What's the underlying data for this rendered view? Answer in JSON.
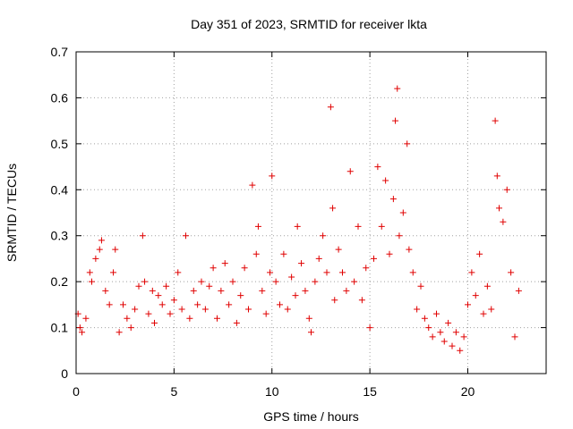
{
  "chart_data": {
    "type": "scatter",
    "title": "Day 351 of 2023, SRMTID for receiver lkta",
    "xlabel": "GPS time / hours",
    "ylabel": "SRMTID / TECUs",
    "xlim": [
      0,
      24
    ],
    "ylim": [
      0,
      0.7
    ],
    "xticks": [
      0,
      5,
      10,
      15,
      20
    ],
    "xtick_labels": [
      "0",
      "5",
      "10",
      "15",
      "20"
    ],
    "yticks": [
      0,
      0.1,
      0.2,
      0.3,
      0.4,
      0.5,
      0.6,
      0.7
    ],
    "ytick_labels": [
      "0",
      "0.1",
      "0.2",
      "0.3",
      "0.4",
      "0.5",
      "0.6",
      "0.7"
    ],
    "grid": true,
    "marker": "+",
    "color": "#e00000",
    "series": [
      {
        "name": "SRMTID",
        "x": [
          0.1,
          0.2,
          0.3,
          0.5,
          0.7,
          0.8,
          1.0,
          1.2,
          1.3,
          1.5,
          1.7,
          1.9,
          2.0,
          2.2,
          2.4,
          2.6,
          2.8,
          3.0,
          3.2,
          3.4,
          3.5,
          3.7,
          3.9,
          4.0,
          4.2,
          4.4,
          4.6,
          4.8,
          5.0,
          5.2,
          5.4,
          5.6,
          5.8,
          6.0,
          6.2,
          6.4,
          6.6,
          6.8,
          7.0,
          7.2,
          7.4,
          7.6,
          7.8,
          8.0,
          8.2,
          8.4,
          8.6,
          8.8,
          9.0,
          9.2,
          9.3,
          9.5,
          9.7,
          9.9,
          10.0,
          10.2,
          10.4,
          10.6,
          10.8,
          11.0,
          11.2,
          11.3,
          11.5,
          11.7,
          11.9,
          12.0,
          12.2,
          12.4,
          12.6,
          12.8,
          13.0,
          13.1,
          13.2,
          13.4,
          13.6,
          13.8,
          14.0,
          14.2,
          14.4,
          14.6,
          14.8,
          15.0,
          15.2,
          15.4,
          15.6,
          15.8,
          16.0,
          16.2,
          16.3,
          16.4,
          16.5,
          16.7,
          16.9,
          17.0,
          17.2,
          17.4,
          17.6,
          17.8,
          18.0,
          18.2,
          18.4,
          18.6,
          18.8,
          19.0,
          19.2,
          19.4,
          19.6,
          19.8,
          20.0,
          20.2,
          20.4,
          20.6,
          20.8,
          21.0,
          21.2,
          21.4,
          21.5,
          21.6,
          21.8,
          22.0,
          22.2,
          22.4,
          22.6
        ],
        "y": [
          0.13,
          0.1,
          0.09,
          0.12,
          0.22,
          0.2,
          0.25,
          0.27,
          0.29,
          0.18,
          0.15,
          0.22,
          0.27,
          0.09,
          0.15,
          0.12,
          0.1,
          0.14,
          0.19,
          0.3,
          0.2,
          0.13,
          0.18,
          0.11,
          0.17,
          0.15,
          0.19,
          0.13,
          0.16,
          0.22,
          0.14,
          0.3,
          0.12,
          0.18,
          0.15,
          0.2,
          0.14,
          0.19,
          0.23,
          0.12,
          0.18,
          0.24,
          0.15,
          0.2,
          0.11,
          0.17,
          0.23,
          0.14,
          0.41,
          0.26,
          0.32,
          0.18,
          0.13,
          0.22,
          0.43,
          0.2,
          0.15,
          0.26,
          0.14,
          0.21,
          0.17,
          0.32,
          0.24,
          0.18,
          0.12,
          0.09,
          0.2,
          0.25,
          0.3,
          0.22,
          0.58,
          0.36,
          0.16,
          0.27,
          0.22,
          0.18,
          0.44,
          0.2,
          0.32,
          0.16,
          0.23,
          0.1,
          0.25,
          0.45,
          0.32,
          0.42,
          0.26,
          0.38,
          0.55,
          0.62,
          0.3,
          0.35,
          0.5,
          0.27,
          0.22,
          0.14,
          0.19,
          0.12,
          0.1,
          0.08,
          0.13,
          0.09,
          0.07,
          0.11,
          0.06,
          0.09,
          0.05,
          0.08,
          0.15,
          0.22,
          0.17,
          0.26,
          0.13,
          0.19,
          0.14,
          0.55,
          0.43,
          0.36,
          0.33,
          0.4,
          0.22,
          0.08,
          0.18
        ]
      }
    ]
  }
}
